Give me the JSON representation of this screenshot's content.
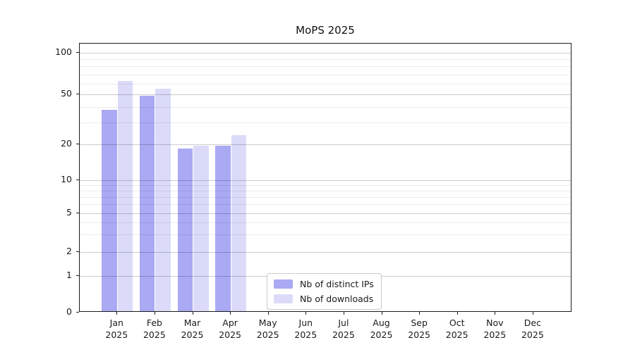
{
  "chart_data": {
    "type": "bar",
    "title": "MoPS 2025",
    "year": "2025",
    "categories": [
      "Jan",
      "Feb",
      "Mar",
      "Apr",
      "May",
      "Jun",
      "Jul",
      "Aug",
      "Sep",
      "Oct",
      "Nov",
      "Dec"
    ],
    "series": [
      {
        "name": "Nb of distinct IPs",
        "color": "#a9a9f4",
        "values": [
          37,
          48,
          18,
          19,
          0,
          0,
          0,
          0,
          0,
          0,
          0,
          0
        ]
      },
      {
        "name": "Nb of downloads",
        "color": "#dbdbf9",
        "values": [
          61,
          54,
          19,
          23,
          0,
          0,
          0,
          0,
          0,
          0,
          0,
          0
        ]
      }
    ],
    "y_axis": {
      "scale": "symlog",
      "major_ticks": [
        0,
        1,
        2,
        5,
        10,
        20,
        50,
        100
      ],
      "minor_ticks": [
        3,
        4,
        6,
        7,
        8,
        9,
        30,
        40,
        60,
        70,
        80,
        90
      ],
      "ylim": [
        0,
        117
      ],
      "grid": true
    },
    "legend": {
      "position": "lower-center"
    }
  }
}
